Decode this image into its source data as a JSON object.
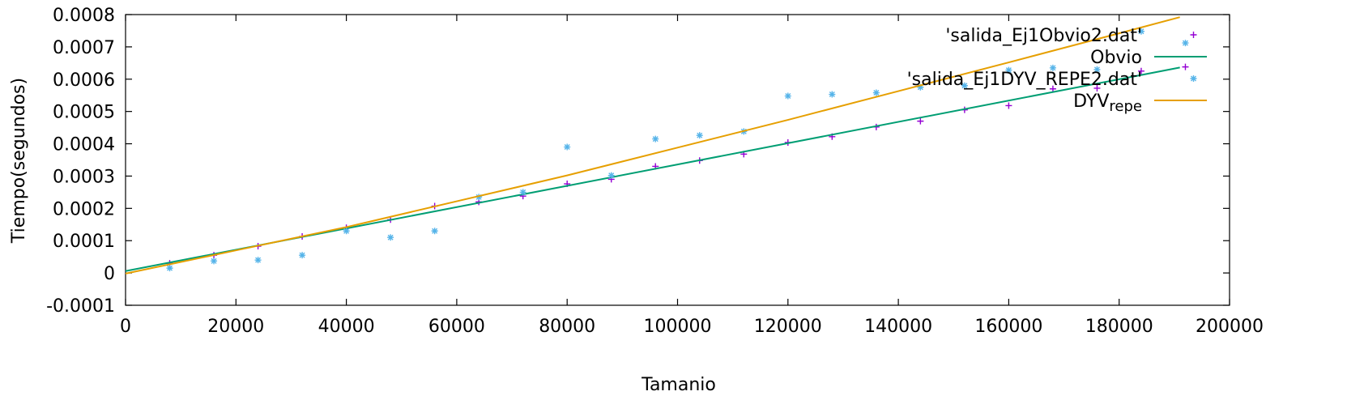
{
  "chart_data": {
    "type": "scatter",
    "title": "",
    "xlabel": "Tamanio",
    "ylabel": "Tiempo(segundos)",
    "xlim": [
      0,
      200000
    ],
    "ylim": [
      -0.0001,
      0.0008
    ],
    "grid": false,
    "legend_position": "top-right",
    "x_ticks": [
      "0",
      "20000",
      "40000",
      "60000",
      "80000",
      "100000",
      "120000",
      "140000",
      "160000",
      "180000",
      "200000"
    ],
    "x_tick_values": [
      0,
      20000,
      40000,
      60000,
      80000,
      100000,
      120000,
      140000,
      160000,
      180000,
      200000
    ],
    "y_ticks": [
      "-0.0001",
      "0",
      "0.0001",
      "0.0002",
      "0.0003",
      "0.0004",
      "0.0005",
      "0.0006",
      "0.0007",
      "0.0008"
    ],
    "y_tick_values": [
      -0.0001,
      0,
      0.0001,
      0.0002,
      0.0003,
      0.0004,
      0.0005,
      0.0006,
      0.0007,
      0.0008
    ],
    "series": [
      {
        "name": "'salida_Ej1Obvio2.dat'",
        "kind": "points",
        "marker": "plus",
        "color": "#9400d3",
        "x": [
          8000,
          16000,
          24000,
          32000,
          40000,
          48000,
          56000,
          64000,
          72000,
          80000,
          88000,
          96000,
          104000,
          112000,
          120000,
          128000,
          136000,
          144000,
          152000,
          160000,
          168000,
          176000,
          184000,
          192000
        ],
        "y": [
          3e-05,
          5.5e-05,
          8.3e-05,
          0.000113,
          0.00014,
          0.000165,
          0.000207,
          0.00022,
          0.000238,
          0.000276,
          0.00029,
          0.00033,
          0.000348,
          0.000368,
          0.000404,
          0.000422,
          0.000452,
          0.00047,
          0.000505,
          0.000518,
          0.00057,
          0.000572,
          0.000625,
          0.000638
        ]
      },
      {
        "name": "Obvio",
        "kind": "line",
        "color": "#009e73",
        "x": [
          0,
          191000
        ],
        "y": [
          6e-06,
          0.000636
        ]
      },
      {
        "name": "'salida_Ej1DYV_REPE2.dat'",
        "kind": "points",
        "marker": "asterisk",
        "color": "#56b4e9",
        "x": [
          8000,
          16000,
          24000,
          32000,
          40000,
          48000,
          56000,
          64000,
          72000,
          80000,
          88000,
          96000,
          104000,
          112000,
          120000,
          128000,
          136000,
          144000,
          152000,
          160000,
          168000,
          176000,
          184000,
          192000
        ],
        "y": [
          1.5e-05,
          3.7e-05,
          4e-05,
          5.5e-05,
          0.00013,
          0.00011,
          0.00013,
          0.000235,
          0.00025,
          0.00039,
          0.000302,
          0.000415,
          0.000426,
          0.000438,
          0.000548,
          0.000553,
          0.000558,
          0.000575,
          0.00058,
          0.000628,
          0.000635,
          0.00063,
          0.000748,
          0.000712
        ]
      },
      {
        "name": "DYV",
        "name_subscript": "repe",
        "kind": "line",
        "color": "#e69f00",
        "x": [
          0,
          20000,
          40000,
          60000,
          80000,
          100000,
          120000,
          140000,
          160000,
          180000,
          191000
        ],
        "y": [
          -2e-06,
          7e-05,
          0.000142,
          0.000222,
          0.000302,
          0.000388,
          0.000474,
          0.000563,
          0.000652,
          0.000742,
          0.000792
        ]
      }
    ]
  }
}
